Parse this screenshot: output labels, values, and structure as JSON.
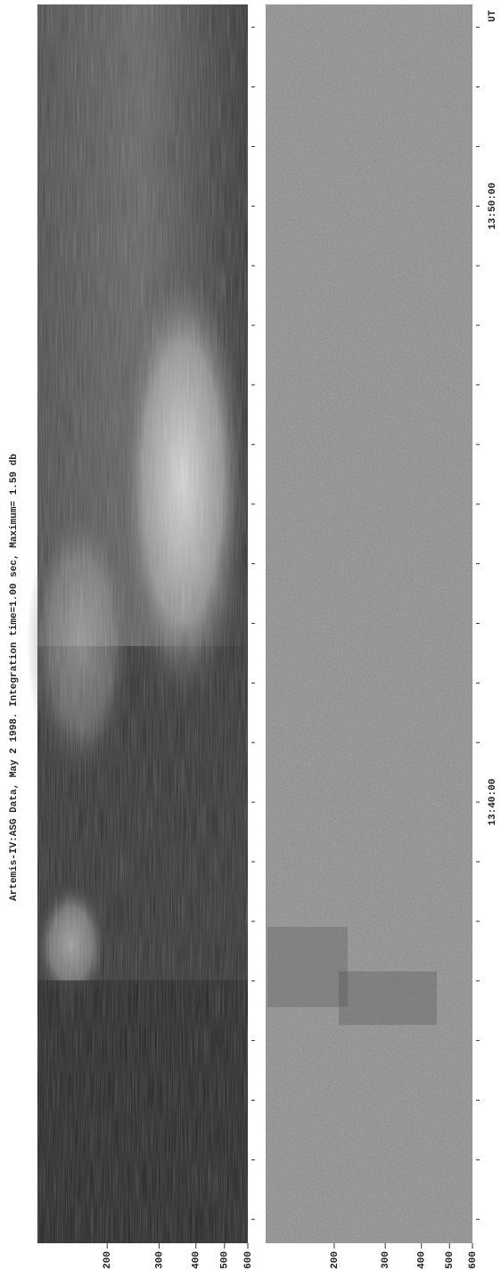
{
  "chart_data": {
    "type": "spectrogram",
    "title": "Artemis-IV:ASG  Data, May  2 1998. Integration time=1.00 sec, Maximum= 1.59 db",
    "xscale": "log",
    "xlim": [
      116,
      600
    ],
    "xticks": [
      200,
      300,
      400,
      500,
      600
    ],
    "ylim": [
      "13:32:36",
      "13:53:23"
    ],
    "yticks": [
      "13:40:00",
      "13:50:00"
    ],
    "yminor_ticks": [
      "13:33:00",
      "13:34:00",
      "13:35:00",
      "13:36:00",
      "13:37:00",
      "13:38:00",
      "13:39:00",
      "13:40:00",
      "13:41:00",
      "13:42:00",
      "13:43:00",
      "13:44:00",
      "13:45:00",
      "13:46:00",
      "13:47:00",
      "13:48:00",
      "13:49:00",
      "13:50:00",
      "13:51:00",
      "13:52:00",
      "13:53:00"
    ],
    "ylabel": "UT"
  }
}
